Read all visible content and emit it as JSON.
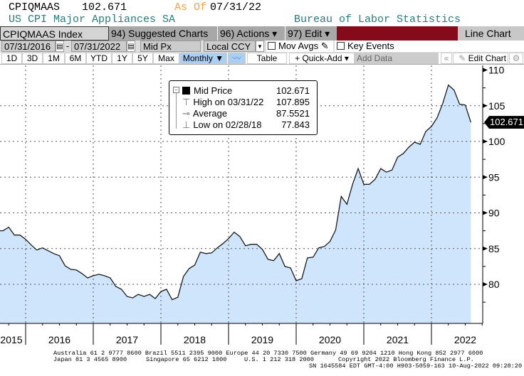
{
  "header": {
    "ticker": "CPIQMAAS",
    "last_value": "102.671",
    "as_of_label": "As Of",
    "as_of_date": "07/31/22",
    "description": "US CPI Major Appliances SA",
    "source": "Bureau of Labor Statistics"
  },
  "toolbar": {
    "security": "CPIQMAAS Index",
    "suggested": "94) Suggested Charts",
    "actions": "96) Actions ▾",
    "edit": "97) Edit ▾",
    "chart_type": "Line Chart"
  },
  "range": {
    "start": "07/31/2016",
    "sep": "-",
    "end": "07/31/2022",
    "field": "Mid Px",
    "currency": "Local CCY",
    "mov_avgs": "Mov Avgs",
    "key_events": "Key Events"
  },
  "periods": [
    "1D",
    "3D",
    "1M",
    "6M",
    "YTD",
    "1Y",
    "5Y",
    "Max"
  ],
  "controls": {
    "frequency": "Monthly ▼",
    "table": "Table",
    "quick_add": "+ Quick-Add ▾",
    "add_data_placeholder": "Add Data",
    "back": "«",
    "edit_chart": "Edit Chart",
    "gear": "⚙"
  },
  "legend": {
    "mid_label": "Mid Price",
    "mid_value": "102.671",
    "high_label": "High on 03/31/22",
    "high_value": "107.895",
    "avg_label": "Average",
    "avg_value": "87.5521",
    "low_label": "Low on 02/28/18",
    "low_value": "77.843"
  },
  "colors": {
    "area_fill": "#cfe5fb",
    "line": "#1a1a1a",
    "as_of": "#f5a04a",
    "description": "#2a7a7a",
    "banner": "#850a1a",
    "highlight": "#a9cff5"
  },
  "chart_data": {
    "type": "area",
    "frequency": "monthly",
    "ylim": [
      75,
      110.5
    ],
    "yticks": [
      80,
      85,
      90,
      95,
      100,
      105,
      110
    ],
    "xticks": [
      "2015",
      "2016",
      "2017",
      "2018",
      "2019",
      "2020",
      "2021",
      "2022"
    ],
    "grid": true,
    "last_label": "102.671",
    "dates": [
      "2015-07",
      "2015-08",
      "2015-09",
      "2015-10",
      "2015-11",
      "2015-12",
      "2016-01",
      "2016-02",
      "2016-03",
      "2016-04",
      "2016-05",
      "2016-06",
      "2016-07",
      "2016-08",
      "2016-09",
      "2016-10",
      "2016-11",
      "2016-12",
      "2017-01",
      "2017-02",
      "2017-03",
      "2017-04",
      "2017-05",
      "2017-06",
      "2017-07",
      "2017-08",
      "2017-09",
      "2017-10",
      "2017-11",
      "2017-12",
      "2018-01",
      "2018-02",
      "2018-03",
      "2018-04",
      "2018-05",
      "2018-06",
      "2018-07",
      "2018-08",
      "2018-09",
      "2018-10",
      "2018-11",
      "2018-12",
      "2019-01",
      "2019-02",
      "2019-03",
      "2019-04",
      "2019-05",
      "2019-06",
      "2019-07",
      "2019-08",
      "2019-09",
      "2019-10",
      "2019-11",
      "2019-12",
      "2020-01",
      "2020-02",
      "2020-03",
      "2020-04",
      "2020-05",
      "2020-06",
      "2020-07",
      "2020-08",
      "2020-09",
      "2020-10",
      "2020-11",
      "2020-12",
      "2021-01",
      "2021-02",
      "2021-03",
      "2021-04",
      "2021-05",
      "2021-06",
      "2021-07",
      "2021-08",
      "2021-09",
      "2021-10",
      "2021-11",
      "2021-12",
      "2022-01",
      "2022-02",
      "2022-03",
      "2022-04",
      "2022-05",
      "2022-06",
      "2022-07"
    ],
    "values": [
      87.5,
      87.5,
      88.0,
      86.9,
      86.9,
      86.3,
      85.5,
      84.8,
      85.1,
      84.7,
      84.3,
      84.0,
      82.6,
      82.1,
      82.0,
      81.5,
      80.9,
      81.2,
      81.4,
      81.2,
      80.9,
      79.7,
      79.3,
      78.3,
      78.1,
      78.6,
      78.3,
      78.6,
      78.0,
      79.0,
      79.3,
      77.843,
      78.2,
      81.1,
      82.2,
      82.7,
      84.5,
      84.3,
      84.4,
      85.1,
      85.7,
      86.4,
      87.3,
      86.7,
      85.4,
      85.6,
      85.6,
      84.9,
      83.5,
      83.3,
      84.3,
      82.5,
      82.3,
      80.5,
      80.8,
      83.7,
      83.8,
      85.1,
      85.3,
      86.0,
      87.6,
      92.3,
      91.2,
      94.0,
      96.2,
      94.0,
      94.0,
      94.7,
      96.2,
      95.7,
      96.0,
      97.8,
      98.3,
      99.2,
      99.9,
      99.6,
      101.4,
      102.1,
      103.3,
      105.3,
      107.895,
      107.2,
      105.2,
      105.1,
      102.671
    ]
  },
  "footer": {
    "line1": "Australia 61 2 9777 8600 Brazil 5511 2395 9000 Europe 44 20 7330 7500 Germany 49 69 9204 1210 Hong Kong 852 2977 6000",
    "line2a": "Japan 81 3 4565 8900",
    "line2b": "Singapore 65 6212 1000",
    "line2c": "U.S. 1 212 318 2000",
    "line2d": "Copyright 2022 Bloomberg Finance L.P.",
    "line3": "SN 1645584 EDT  GMT-4:00 H903-5059-163 10-Aug-2022 09:28:20"
  }
}
